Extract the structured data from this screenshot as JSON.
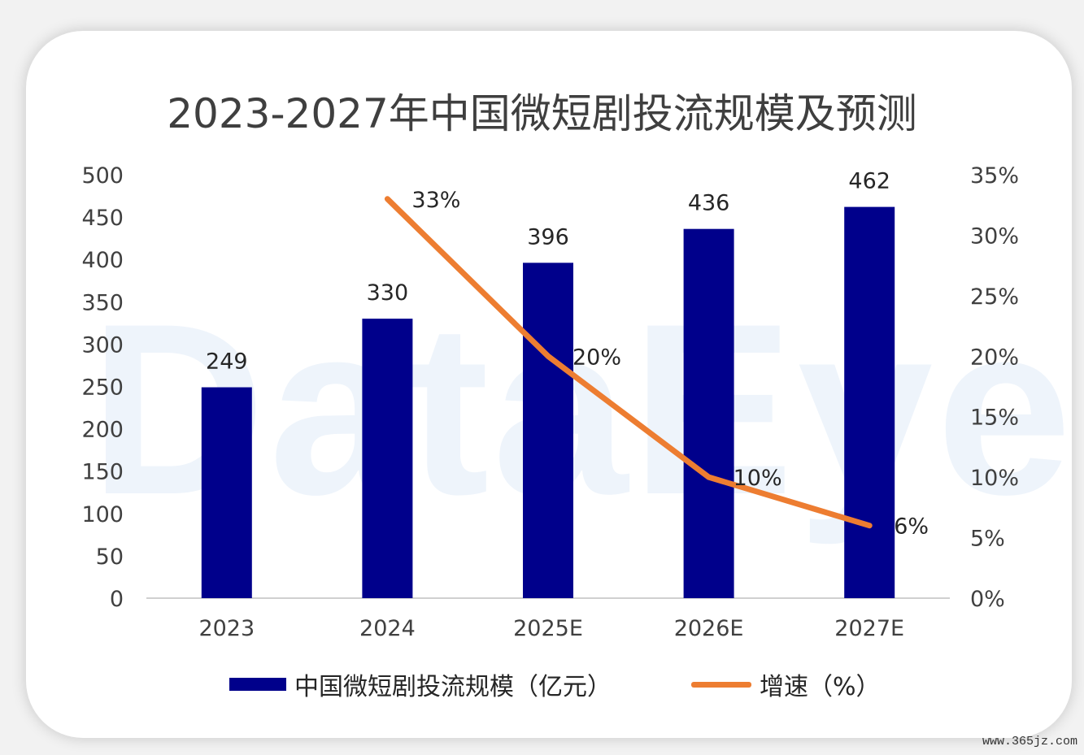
{
  "chart_data": {
    "type": "bar",
    "title": "2023-2027年中国微短剧投流规模及预测",
    "categories": [
      "2023",
      "2024",
      "2025E",
      "2026E",
      "2027E"
    ],
    "series": [
      {
        "name": "中国微短剧投流规模（亿元）",
        "type": "bar",
        "axis": "left",
        "color": "#00008b",
        "values": [
          249,
          330,
          396,
          436,
          462
        ],
        "labels": [
          "249",
          "330",
          "396",
          "436",
          "462"
        ]
      },
      {
        "name": "增速（%）",
        "type": "line",
        "axis": "right",
        "color": "#ed7d31",
        "values": [
          null,
          33,
          20,
          10,
          6
        ],
        "labels": [
          "",
          "33%",
          "20%",
          "10%",
          "6%"
        ]
      }
    ],
    "left_axis": {
      "ylim": [
        0,
        500
      ],
      "ticks": [
        "0",
        "50",
        "100",
        "150",
        "200",
        "250",
        "300",
        "350",
        "400",
        "450",
        "500"
      ]
    },
    "right_axis": {
      "ylim": [
        0,
        35
      ],
      "ticks": [
        "0%",
        "5%",
        "10%",
        "15%",
        "20%",
        "25%",
        "30%",
        "35%"
      ]
    },
    "grid": false,
    "legend_position": "bottom"
  },
  "watermark": "DataEye",
  "site_url": "www.365jz.com"
}
